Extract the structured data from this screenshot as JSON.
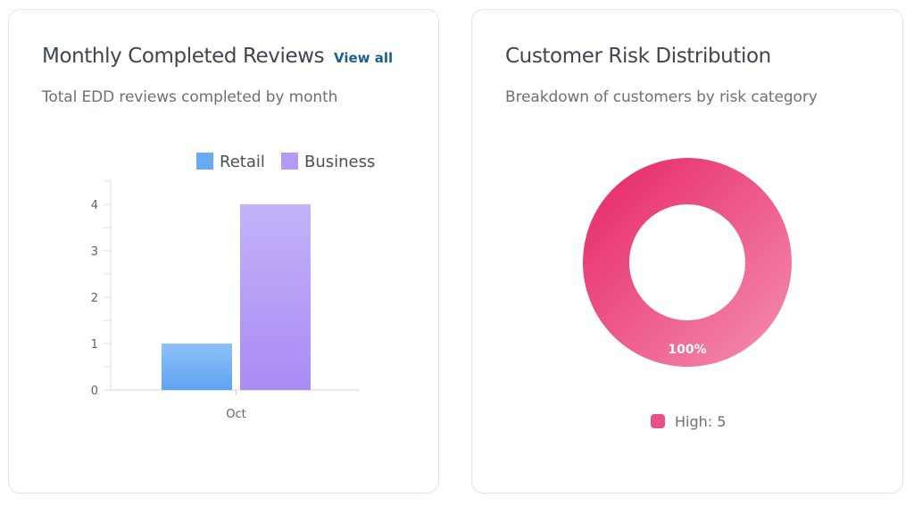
{
  "reviews_card": {
    "title": "Monthly Completed Reviews",
    "view_all": "View all",
    "subtitle": "Total EDD reviews completed by month"
  },
  "risk_card": {
    "title": "Customer Risk Distribution",
    "subtitle": "Breakdown of customers by risk category",
    "legend_label": "High: 5"
  },
  "colors": {
    "retail": "#6aaaf3",
    "business": "#b39af5",
    "high": "#ea4f86"
  },
  "chart_data": [
    {
      "type": "bar",
      "categories": [
        "Oct"
      ],
      "series": [
        {
          "name": "Retail",
          "values": [
            1
          ]
        },
        {
          "name": "Business",
          "values": [
            4
          ]
        }
      ],
      "yticks": [
        "0",
        "1",
        "2",
        "3",
        "4"
      ],
      "ylim": [
        0,
        4.5
      ],
      "legend_position": "top-right",
      "grid": false
    },
    {
      "type": "pie",
      "variant": "donut",
      "slices": [
        {
          "name": "High",
          "value": 5,
          "percent_label": "100%"
        }
      ]
    }
  ]
}
